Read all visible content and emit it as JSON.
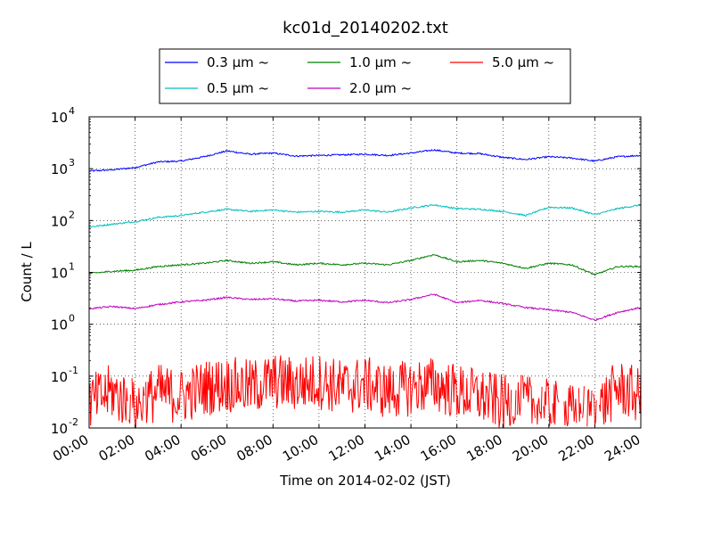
{
  "chart_data": {
    "type": "line",
    "title": "kc01d_20140202.txt",
    "xlabel": "Time on 2014-02-02 (JST)",
    "ylabel": "Count / L",
    "x_unit": "hour",
    "xlim": [
      0,
      24
    ],
    "ylim": [
      0.01,
      10000
    ],
    "yscale": "log",
    "grid": true,
    "legend_position": "top-center",
    "x_ticks": [
      {
        "value": 0,
        "label": "00:00"
      },
      {
        "value": 2,
        "label": "02:00"
      },
      {
        "value": 4,
        "label": "04:00"
      },
      {
        "value": 6,
        "label": "06:00"
      },
      {
        "value": 8,
        "label": "08:00"
      },
      {
        "value": 10,
        "label": "10:00"
      },
      {
        "value": 12,
        "label": "12:00"
      },
      {
        "value": 14,
        "label": "14:00"
      },
      {
        "value": 16,
        "label": "16:00"
      },
      {
        "value": 18,
        "label": "18:00"
      },
      {
        "value": 20,
        "label": "20:00"
      },
      {
        "value": 22,
        "label": "22:00"
      },
      {
        "value": 24,
        "label": "24:00"
      }
    ],
    "y_ticks": [
      {
        "value": 0.01,
        "base": "10",
        "exp": "-2"
      },
      {
        "value": 0.1,
        "base": "10",
        "exp": "-1"
      },
      {
        "value": 1,
        "base": "10",
        "exp": "0"
      },
      {
        "value": 10,
        "base": "10",
        "exp": "1"
      },
      {
        "value": 100,
        "base": "10",
        "exp": "2"
      },
      {
        "value": 1000,
        "base": "10",
        "exp": "3"
      },
      {
        "value": 10000,
        "base": "10",
        "exp": "4"
      }
    ],
    "series": [
      {
        "name": "0.3 μm ~",
        "color": "#0000ff",
        "x": [
          0,
          1,
          2,
          3,
          4,
          5,
          6,
          7,
          8,
          9,
          10,
          11,
          12,
          13,
          14,
          15,
          16,
          17,
          18,
          19,
          20,
          21,
          22,
          23,
          24
        ],
        "y": [
          900,
          950,
          1050,
          1350,
          1400,
          1700,
          2200,
          1900,
          2000,
          1750,
          1800,
          1850,
          1900,
          1800,
          2000,
          2300,
          2000,
          1950,
          1650,
          1500,
          1700,
          1600,
          1400,
          1700,
          1800
        ]
      },
      {
        "name": "0.5 μm ~",
        "color": "#00bfbf",
        "x": [
          0,
          1,
          2,
          3,
          4,
          5,
          6,
          7,
          8,
          9,
          10,
          11,
          12,
          13,
          14,
          15,
          16,
          17,
          18,
          19,
          20,
          21,
          22,
          23,
          24
        ],
        "y": [
          75,
          85,
          95,
          115,
          125,
          145,
          165,
          150,
          160,
          145,
          150,
          145,
          160,
          145,
          175,
          200,
          170,
          165,
          150,
          125,
          180,
          175,
          130,
          170,
          200
        ]
      },
      {
        "name": "1.0 μm ~",
        "color": "#008000",
        "x": [
          0,
          1,
          2,
          3,
          4,
          5,
          6,
          7,
          8,
          9,
          10,
          11,
          12,
          13,
          14,
          15,
          16,
          17,
          18,
          19,
          20,
          21,
          22,
          23,
          24
        ],
        "y": [
          9.5,
          10.5,
          11,
          13,
          14,
          15,
          17,
          15,
          16,
          14,
          15,
          14,
          15,
          14,
          17,
          22,
          16,
          17,
          15,
          12,
          15,
          14,
          9,
          13,
          13
        ]
      },
      {
        "name": "2.0 μm ~",
        "color": "#bf00bf",
        "x": [
          0,
          1,
          2,
          3,
          4,
          5,
          6,
          7,
          8,
          9,
          10,
          11,
          12,
          13,
          14,
          15,
          16,
          17,
          18,
          19,
          20,
          21,
          22,
          23,
          24
        ],
        "y": [
          2.0,
          2.2,
          2.0,
          2.4,
          2.7,
          2.9,
          3.3,
          3.0,
          3.1,
          2.8,
          2.9,
          2.7,
          2.9,
          2.6,
          3.0,
          3.8,
          2.6,
          2.9,
          2.5,
          2.1,
          1.9,
          1.7,
          1.2,
          1.7,
          2.1
        ]
      },
      {
        "name": "5.0 μm ~",
        "color": "#ff0000",
        "x": [
          0,
          1,
          2,
          3,
          4,
          5,
          6,
          7,
          8,
          9,
          10,
          11,
          12,
          13,
          14,
          15,
          16,
          17,
          18,
          19,
          20,
          21,
          22,
          23,
          24
        ],
        "y": [
          0.03,
          0.05,
          0.025,
          0.05,
          0.04,
          0.06,
          0.07,
          0.06,
          0.08,
          0.07,
          0.08,
          0.06,
          0.07,
          0.05,
          0.06,
          0.07,
          0.05,
          0.04,
          0.03,
          0.03,
          0.025,
          0.02,
          0.02,
          0.06,
          0.04
        ]
      }
    ]
  }
}
